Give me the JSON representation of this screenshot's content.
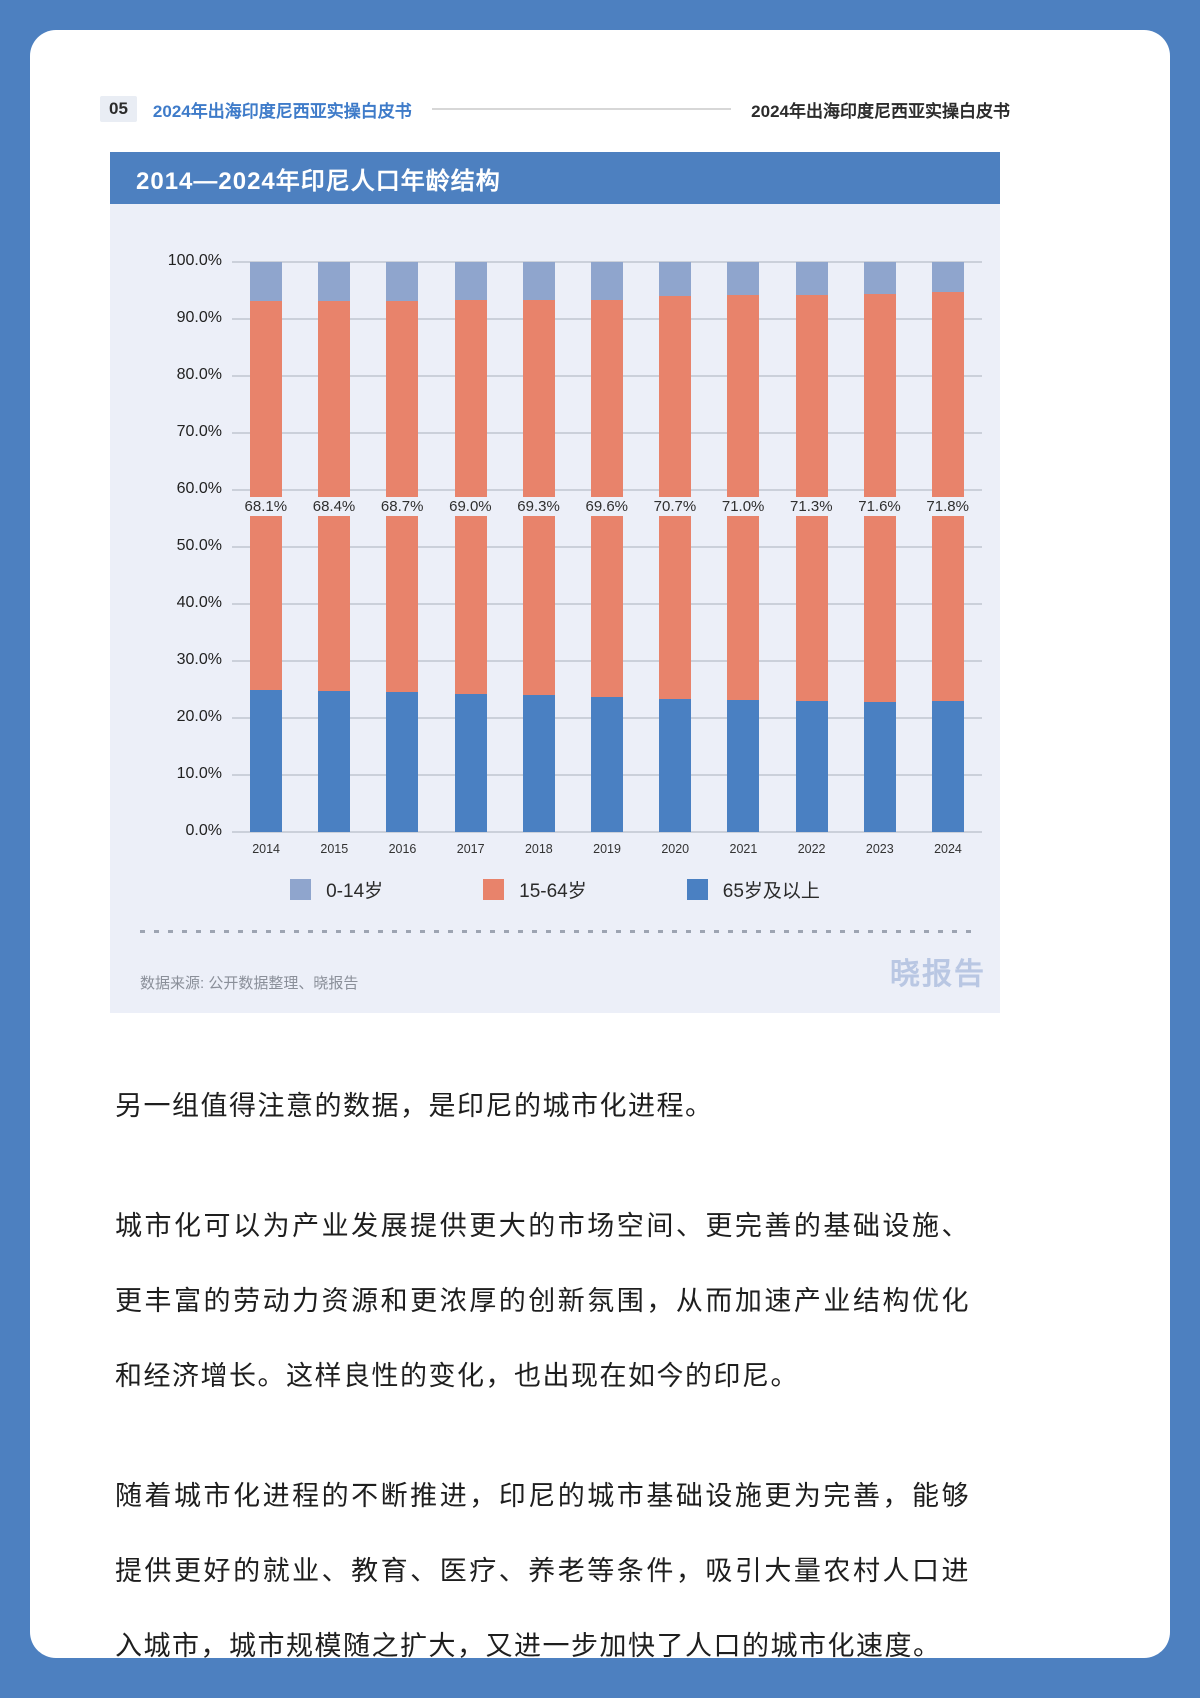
{
  "header": {
    "page_number": "05",
    "left_title": "2024年出海印度尼西亚实操白皮书",
    "right_title": "2024年出海印度尼西亚实操白皮书"
  },
  "chart_card": {
    "title": "2014—2024年印尼人口年龄结构",
    "source": "数据来源: 公开数据整理、晓报告",
    "watermark": "晓报告"
  },
  "chart_data": {
    "type": "bar",
    "stacked": true,
    "title": "2014—2024年印尼人口年龄结构",
    "categories": [
      "2014",
      "2015",
      "2016",
      "2017",
      "2018",
      "2019",
      "2020",
      "2021",
      "2022",
      "2023",
      "2024"
    ],
    "series": [
      {
        "name": "65岁及以上",
        "color": "#4a80c2",
        "values": [
          25.0,
          24.8,
          24.5,
          24.3,
          24.0,
          23.7,
          23.4,
          23.2,
          23.0,
          22.8,
          23.0
        ]
      },
      {
        "name": "15-64岁",
        "color": "#e8836b",
        "values": [
          68.1,
          68.4,
          68.7,
          69.0,
          69.3,
          69.6,
          70.7,
          71.0,
          71.3,
          71.6,
          71.8
        ]
      },
      {
        "name": "0-14岁",
        "color": "#8fa5cd",
        "values": [
          6.9,
          6.8,
          6.8,
          6.7,
          6.7,
          6.7,
          5.9,
          5.8,
          5.7,
          5.6,
          5.2
        ]
      }
    ],
    "bar_labels": [
      "68.1%",
      "68.4%",
      "68.7%",
      "69.0%",
      "69.3%",
      "69.6%",
      "70.7%",
      "71.0%",
      "71.3%",
      "71.6%",
      "71.8%"
    ],
    "bar_label_series": "15-64岁",
    "y_ticks": [
      "100.0%",
      "90.0%",
      "80.0%",
      "70.0%",
      "60.0%",
      "50.0%",
      "40.0%",
      "30.0%",
      "20.0%",
      "10.0%",
      "0.0%"
    ],
    "ylim": [
      0,
      100
    ],
    "grid": true,
    "legend_position": "bottom",
    "legend": [
      {
        "label": "0-14岁",
        "color": "#8fa5cd"
      },
      {
        "label": "15-64岁",
        "color": "#e8836b"
      },
      {
        "label": "65岁及以上",
        "color": "#4a80c2"
      }
    ]
  },
  "body": {
    "paragraphs": [
      {
        "lines": [
          "另一组值得注意的数据，是印尼的城市化进程。"
        ]
      },
      {
        "lines": [
          "城市化可以为产业发展提供更大的市场空间、更完善的基础设施、",
          "更丰富的劳动力资源和更浓厚的创新氛围，从而加速产业结构优化",
          "和经济增长。这样良性的变化，也出现在如今的印尼。"
        ]
      },
      {
        "lines": [
          "随着城市化进程的不断推进，印尼的城市基础设施更为完善，能够",
          "提供更好的就业、教育、医疗、养老等条件，吸引大量农村人口进",
          "入城市，城市规模随之扩大，又进一步加快了人口的城市化速度。"
        ]
      }
    ]
  },
  "colors": {
    "page_border_blue": "#4d80c0",
    "header_accent_blue": "#3e7bc9",
    "chart_card_bg": "#eceff8",
    "series_65_plus": "#4a80c2",
    "series_15_64": "#e8836b",
    "series_0_14": "#8fa5cd",
    "watermark_blue": "#b9c7e3"
  }
}
